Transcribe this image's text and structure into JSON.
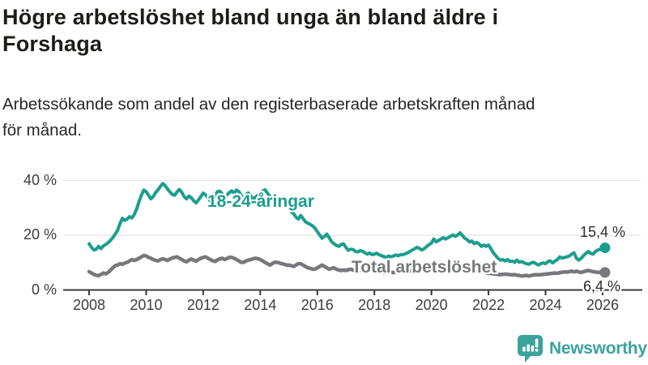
{
  "header": {
    "title": "Högre arbetslöshet bland unga än bland äldre i\nForshaga",
    "subtitle": "Arbetssökande som andel av den registerbaserade arbetskraften månad\nför månad."
  },
  "chart_data": {
    "type": "line",
    "title": "Högre arbetslöshet bland unga än bland äldre i Forshaga",
    "subtitle": "Arbetssökande som andel av den registerbaserade arbetskraften månad för månad.",
    "x_unit": "month",
    "x_start_year": 2008,
    "x_end": "2026-02",
    "ylim": [
      0,
      44
    ],
    "grid": "horizontal",
    "y_ticks": [
      {
        "label": "0 %",
        "value": 0
      },
      {
        "label": "20 %",
        "value": 20
      },
      {
        "label": "40 %",
        "value": 40
      }
    ],
    "x_ticks": [
      {
        "label": "2008",
        "year": 2008
      },
      {
        "label": "2010",
        "year": 2010
      },
      {
        "label": "2012",
        "year": 2012
      },
      {
        "label": "2014",
        "year": 2014
      },
      {
        "label": "2016",
        "year": 2016
      },
      {
        "label": "2018",
        "year": 2018
      },
      {
        "label": "2020",
        "year": 2020
      },
      {
        "label": "2022",
        "year": 2022
      },
      {
        "label": "2024",
        "year": 2024
      },
      {
        "label": "2026",
        "year": 2026
      }
    ],
    "series": [
      {
        "name": "18-24-åringar",
        "color": "#1b9e8e",
        "end_label": "15,4 %",
        "end_value": 15.4,
        "values": [
          16.9,
          15.6,
          14.6,
          14.9,
          15.9,
          15.1,
          16.1,
          16.6,
          17.3,
          18.1,
          19.1,
          20.4,
          21.8,
          24.3,
          26.2,
          25.4,
          25.9,
          26.8,
          26.3,
          27.6,
          29.6,
          32.2,
          34.6,
          36.5,
          35.9,
          34.6,
          33.3,
          34.1,
          35.6,
          36.6,
          37.9,
          38.9,
          38.1,
          36.9,
          35.8,
          34.9,
          34.6,
          35.9,
          36.7,
          35.6,
          34.1,
          33.3,
          34.3,
          33.7,
          32.6,
          31.8,
          32.9,
          34.1,
          35.4,
          34.7,
          33.6,
          32.4,
          33.1,
          34.6,
          35.9,
          36.1,
          35.1,
          33.9,
          34.7,
          35.6,
          36.2,
          35.3,
          36.5,
          35.9,
          34.6,
          33.6,
          34.9,
          35.4,
          34.3,
          33.1,
          33.9,
          34.6,
          35.1,
          36.1,
          36.6,
          35.4,
          34.3,
          33.1,
          32.8,
          33.3,
          33.6,
          33.1,
          32.1,
          30.9,
          30.1,
          28.6,
          27.9,
          26.6,
          25.9,
          27.2,
          26.1,
          24.9,
          24.4,
          23.9,
          23.4,
          22.6,
          21.3,
          20.1,
          18.9,
          19.6,
          20.4,
          19.1,
          17.6,
          16.9,
          16.3,
          15.9,
          16.6,
          16.9,
          15.6,
          14.5,
          14.9,
          14.8,
          14.1,
          13.9,
          14.4,
          14.1,
          13.6,
          13.1,
          13.5,
          12.9,
          13.1,
          13.4,
          12.9,
          12.5,
          12.2,
          11.9,
          12.4,
          12.1,
          12.4,
          12.8,
          12.5,
          12.9,
          12.9,
          13.2,
          13.6,
          14.1,
          14.6,
          15.1,
          15.6,
          15.1,
          14.6,
          15.1,
          15.9,
          16.6,
          17.1,
          18.6,
          17.6,
          18.1,
          18.6,
          19.1,
          18.6,
          19.1,
          19.6,
          20.1,
          19.6,
          20.1,
          20.9,
          19.9,
          18.9,
          18.4,
          17.5,
          17.9,
          16.9,
          17.4,
          16.9,
          15.9,
          16.4,
          15.9,
          16.4,
          15.1,
          13.6,
          12.6,
          11.6,
          10.9,
          11.1,
          10.6,
          11.1,
          10.4,
          10.6,
          10.1,
          10.9,
          10.1,
          10.4,
          9.9,
          9.6,
          9.4,
          9.9,
          10.1,
          9.6,
          9.1,
          9.6,
          9.9,
          9.6,
          10.4,
          10.6,
          9.9,
          10.6,
          11.1,
          12.1,
          11.6,
          11.9,
          12.1,
          12.4,
          13.1,
          13.6,
          11.6,
          10.9,
          11.6,
          12.6,
          13.4,
          14.1,
          13.4,
          13.1,
          14.1,
          14.6,
          14.9,
          15.1,
          15.4
        ]
      },
      {
        "name": "Total arbetslöshet",
        "color": "#77787c",
        "end_label": "6,4 %",
        "end_value": 6.4,
        "values": [
          6.7,
          6.2,
          5.7,
          5.4,
          5.2,
          5.7,
          6.2,
          5.9,
          6.4,
          7.2,
          8.1,
          8.9,
          9.1,
          9.6,
          9.4,
          9.8,
          10.1,
          10.6,
          11.1,
          10.8,
          11.1,
          11.6,
          12.1,
          12.6,
          12.4,
          11.9,
          11.6,
          11.1,
          10.8,
          10.6,
          11.1,
          11.4,
          11.1,
          10.8,
          11.3,
          11.7,
          11.9,
          12.1,
          11.6,
          11.1,
          10.6,
          10.3,
          10.9,
          11.3,
          10.9,
          10.5,
          11.1,
          11.6,
          11.9,
          12.1,
          11.6,
          11.1,
          10.7,
          10.4,
          11.0,
          11.4,
          11.6,
          11.1,
          11.5,
          11.9,
          11.9,
          11.6,
          11.1,
          10.6,
          10.1,
          10.1,
          10.6,
          10.9,
          11.1,
          11.4,
          11.6,
          11.4,
          11.1,
          10.6,
          10.1,
          9.6,
          9.1,
          9.6,
          10.1,
          10.1,
          9.9,
          9.6,
          9.4,
          9.1,
          9.1,
          8.9,
          8.6,
          9.1,
          9.6,
          9.6,
          9.1,
          8.6,
          8.1,
          7.9,
          7.6,
          7.6,
          8.1,
          8.6,
          9.1,
          8.6,
          8.1,
          7.6,
          7.9,
          8.1,
          7.6,
          7.3,
          7.1,
          7.3,
          7.1,
          7.4,
          7.6,
          7.3,
          7.1,
          6.9,
          7.1,
          7.3,
          7.1,
          6.9,
          7.1,
          7.3,
          7.1,
          6.9,
          6.7,
          6.5,
          6.3,
          6.5,
          6.7,
          6.5,
          6.3,
          6.5,
          6.7,
          6.9,
          6.7,
          6.5,
          6.7,
          6.9,
          7.1,
          7.3,
          7.5,
          7.3,
          7.1,
          7.3,
          7.5,
          7.7,
          7.9,
          8.1,
          8.6,
          9.1,
          9.4,
          9.6,
          9.4,
          9.1,
          8.9,
          8.7,
          8.5,
          8.3,
          8.5,
          8.3,
          8.1,
          7.9,
          7.7,
          7.5,
          7.3,
          7.1,
          6.9,
          6.7,
          6.5,
          6.3,
          6.1,
          6.0,
          5.9,
          5.8,
          5.7,
          5.6,
          5.7,
          5.8,
          5.7,
          5.6,
          5.5,
          5.6,
          5.4,
          5.3,
          5.1,
          5.2,
          5.3,
          5.1,
          5.3,
          5.5,
          5.6,
          5.5,
          5.6,
          5.7,
          5.8,
          5.9,
          6.0,
          6.1,
          6.2,
          6.1,
          6.3,
          6.5,
          6.6,
          6.5,
          6.7,
          6.9,
          6.6,
          6.9,
          6.6,
          6.4,
          6.7,
          6.9,
          7.1,
          6.9,
          6.7,
          6.6,
          6.4,
          6.5,
          6.4,
          6.4
        ]
      }
    ],
    "colors": {
      "grid": "#e4e4e4",
      "axis": "#3a3a3a",
      "tick_text": "#3d3d3d"
    }
  },
  "footer": {
    "brand": "Newsworthy",
    "brand_color": "#3aa39c",
    "icon": "bar-chart-speech-bubble-icon"
  }
}
